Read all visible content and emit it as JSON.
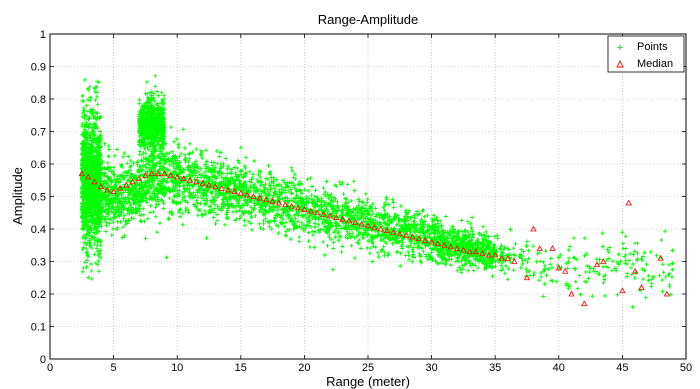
{
  "chart_data": {
    "type": "scatter",
    "title": "Range-Amplitude",
    "xlabel": "Range (meter)",
    "ylabel": "Amplitude",
    "xlim": [
      0,
      50
    ],
    "ylim": [
      0,
      1
    ],
    "xticks": [
      0,
      5,
      10,
      15,
      20,
      25,
      30,
      35,
      40,
      45,
      50
    ],
    "yticks": [
      0,
      0.1,
      0.2,
      0.3,
      0.4,
      0.5,
      0.6,
      0.7,
      0.8,
      0.9,
      1
    ],
    "xtick_labels": [
      "0",
      "5",
      "10",
      "15",
      "20",
      "25",
      "30",
      "35",
      "40",
      "45",
      "50"
    ],
    "ytick_labels": [
      "0",
      "0.1",
      "0.2",
      "0.3",
      "0.4",
      "0.5",
      "0.6",
      "0.7",
      "0.8",
      "0.9",
      "1"
    ],
    "grid": true,
    "legend_position": "top-right",
    "series": [
      {
        "name": "Points",
        "marker": "+",
        "color": "#00ff00",
        "density_profile": [
          {
            "range": 2.5,
            "center": 0.55,
            "spread": 0.12
          },
          {
            "range": 4,
            "center": 0.5,
            "spread": 0.1
          },
          {
            "range": 6,
            "center": 0.5,
            "spread": 0.09
          },
          {
            "range": 8,
            "center": 0.55,
            "spread": 0.09
          },
          {
            "range": 10,
            "center": 0.55,
            "spread": 0.09
          },
          {
            "range": 15,
            "center": 0.51,
            "spread": 0.08
          },
          {
            "range": 20,
            "center": 0.46,
            "spread": 0.08
          },
          {
            "range": 25,
            "center": 0.42,
            "spread": 0.07
          },
          {
            "range": 30,
            "center": 0.37,
            "spread": 0.06
          },
          {
            "range": 35,
            "center": 0.32,
            "spread": 0.05
          },
          {
            "range": 40,
            "center": 0.27,
            "spread": 0.06
          },
          {
            "range": 45,
            "center": 0.3,
            "spread": 0.08
          },
          {
            "range": 49,
            "center": 0.26,
            "spread": 0.08
          }
        ]
      },
      {
        "name": "Median",
        "marker": "triangle",
        "color": "#ff0000",
        "x": [
          2.5,
          3.0,
          3.5,
          4.0,
          4.5,
          5.0,
          5.5,
          6.0,
          6.5,
          7.0,
          7.5,
          8.0,
          8.5,
          9.0,
          9.5,
          10.0,
          10.5,
          11.0,
          11.5,
          12.0,
          12.5,
          13.0,
          13.5,
          14.0,
          14.5,
          15.0,
          15.5,
          16.0,
          16.5,
          17.0,
          17.5,
          18.0,
          18.5,
          19.0,
          19.5,
          20.0,
          20.5,
          21.0,
          21.5,
          22.0,
          22.5,
          23.0,
          23.5,
          24.0,
          24.5,
          25.0,
          25.5,
          26.0,
          26.5,
          27.0,
          27.5,
          28.0,
          28.5,
          29.0,
          29.5,
          30.0,
          30.5,
          31.0,
          31.5,
          32.0,
          32.5,
          33.0,
          33.5,
          34.0,
          34.5,
          35.0,
          35.5,
          36.0,
          36.5,
          37.5,
          38.0,
          38.5,
          39.5,
          40.0,
          40.5,
          41.0,
          42.0,
          43.0,
          43.5,
          45.0,
          45.5,
          46.0,
          46.5,
          48.0,
          48.5
        ],
        "y": [
          0.57,
          0.56,
          0.545,
          0.53,
          0.52,
          0.515,
          0.525,
          0.535,
          0.545,
          0.555,
          0.565,
          0.57,
          0.57,
          0.57,
          0.565,
          0.56,
          0.555,
          0.55,
          0.545,
          0.54,
          0.535,
          0.53,
          0.525,
          0.52,
          0.515,
          0.51,
          0.505,
          0.5,
          0.495,
          0.49,
          0.485,
          0.48,
          0.475,
          0.47,
          0.465,
          0.46,
          0.455,
          0.45,
          0.445,
          0.44,
          0.435,
          0.43,
          0.425,
          0.42,
          0.415,
          0.41,
          0.405,
          0.4,
          0.395,
          0.39,
          0.385,
          0.38,
          0.375,
          0.37,
          0.365,
          0.36,
          0.355,
          0.35,
          0.345,
          0.34,
          0.335,
          0.33,
          0.33,
          0.325,
          0.32,
          0.32,
          0.31,
          0.31,
          0.3,
          0.25,
          0.4,
          0.34,
          0.34,
          0.28,
          0.27,
          0.2,
          0.17,
          0.29,
          0.3,
          0.21,
          0.48,
          0.27,
          0.22,
          0.31,
          0.2
        ]
      }
    ]
  }
}
